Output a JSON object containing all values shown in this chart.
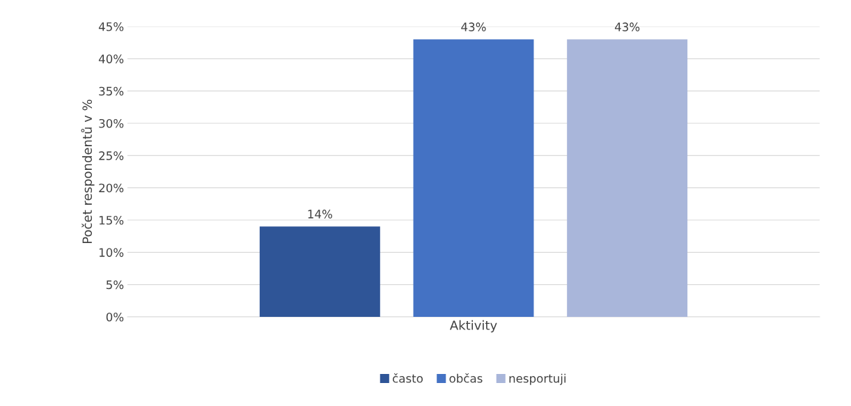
{
  "chart_data": {
    "type": "bar",
    "ylabel": "Počet respondentů v %",
    "categories": [
      "Aktivity"
    ],
    "series": [
      {
        "name": "často",
        "color": "#2f5597",
        "values": [
          14
        ],
        "value_labels": [
          "14%"
        ]
      },
      {
        "name": "občas",
        "color": "#4472c4",
        "values": [
          43
        ],
        "value_labels": [
          "43%"
        ]
      },
      {
        "name": "nesportuji",
        "color": "#a9b6da",
        "values": [
          43
        ],
        "value_labels": [
          "43%"
        ]
      }
    ],
    "ylim": [
      0,
      45
    ],
    "yticks": [
      {
        "value": 0,
        "label": "0%"
      },
      {
        "value": 5,
        "label": "5%"
      },
      {
        "value": 10,
        "label": "10%"
      },
      {
        "value": 15,
        "label": "15%"
      },
      {
        "value": 20,
        "label": "20%"
      },
      {
        "value": 25,
        "label": "25%"
      },
      {
        "value": 30,
        "label": "30%"
      },
      {
        "value": 35,
        "label": "35%"
      },
      {
        "value": 40,
        "label": "40%"
      },
      {
        "value": 45,
        "label": "45%"
      }
    ],
    "grid": "y",
    "legend": "bottom"
  }
}
